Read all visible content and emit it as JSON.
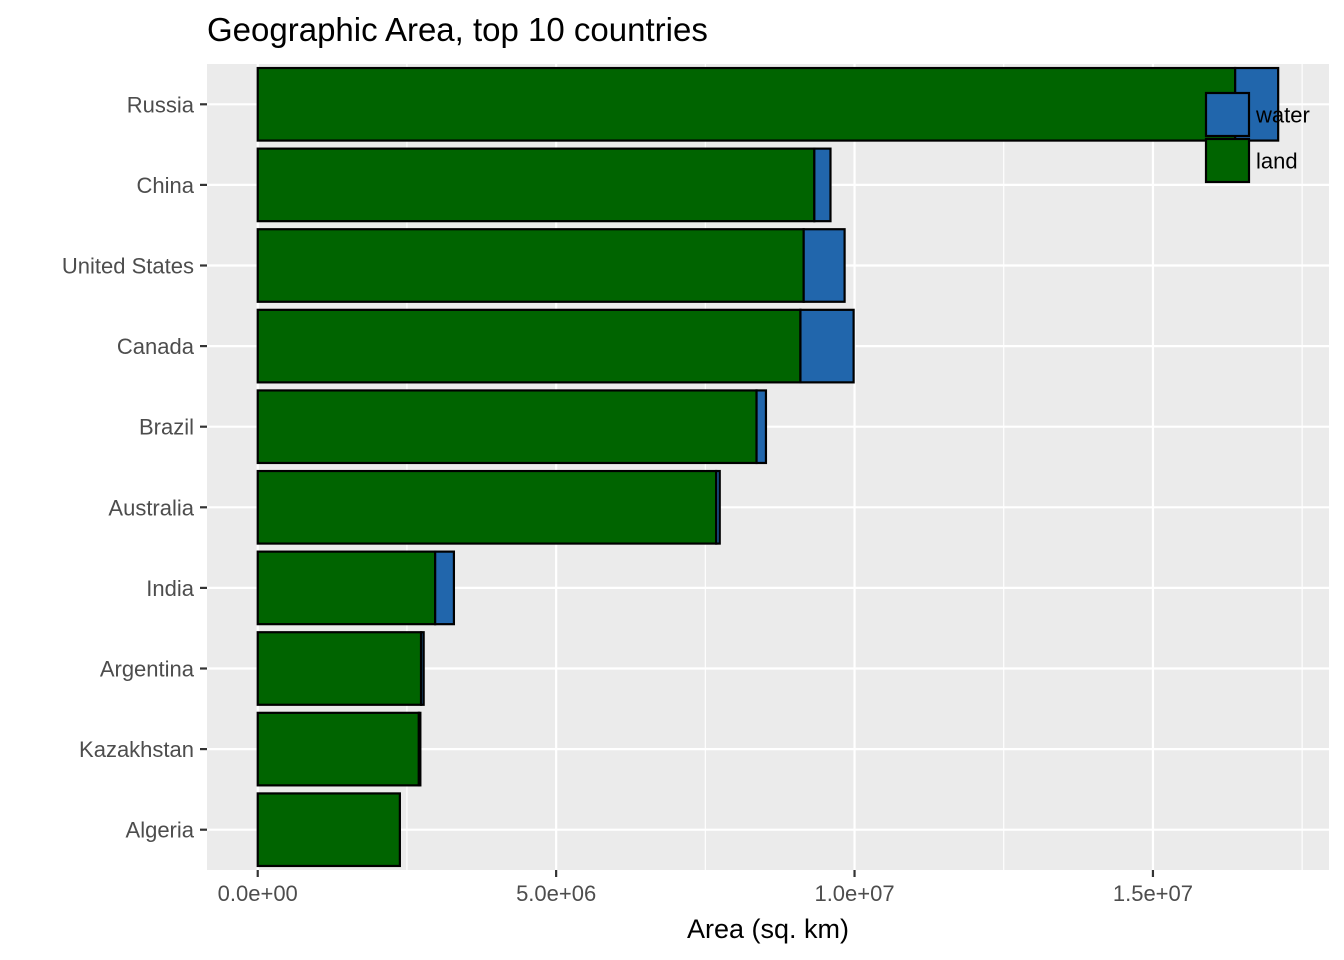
{
  "chart_data": {
    "type": "bar",
    "orientation": "horizontal",
    "stacked": true,
    "title": "Geographic Area, top 10 countries",
    "xlabel": "Area (sq. km)",
    "ylabel": "",
    "xlim": [
      -850000,
      17950000
    ],
    "x_ticks": [
      0,
      5000000,
      10000000,
      15000000
    ],
    "x_tick_labels": [
      "0.0e+00",
      "5.0e+06",
      "1.0e+07",
      "1.5e+07"
    ],
    "categories": [
      "Algeria",
      "Kazakhstan",
      "Argentina",
      "India",
      "Australia",
      "Brazil",
      "Canada",
      "United States",
      "China",
      "Russia"
    ],
    "series": [
      {
        "name": "land",
        "color": "#006400",
        "values": [
          2381741,
          2699700,
          2736690,
          2973190,
          7682300,
          8358140,
          9093507,
          9147593,
          9326410,
          16377742
        ]
      },
      {
        "name": "water",
        "color": "#2166ac",
        "values": [
          0,
          25200,
          43710,
          314070,
          58920,
          157630,
          891163,
          685924,
          270550,
          720500
        ]
      }
    ],
    "legend": {
      "position": "top-right",
      "order": [
        "water",
        "land"
      ]
    },
    "grid": true,
    "panel_background": "#ebebeb",
    "grid_color": "#ffffff"
  }
}
